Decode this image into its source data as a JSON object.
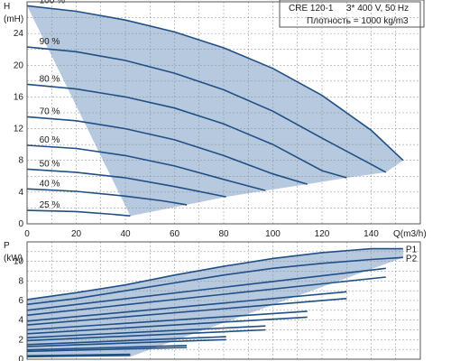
{
  "info": {
    "model": "CRE 120-1",
    "supply": "3* 400 V, 50 Hz",
    "density": "Плотность = 1000 kg/m3"
  },
  "colors": {
    "area_fill": "#b7c9de",
    "curve": "#1f4f86",
    "grid": "#8a8a8a"
  },
  "chart_data": [
    {
      "type": "line",
      "ylabel": "H",
      "yunit": "(mH)",
      "xlabel": "Q(m3/h)",
      "xlim": [
        0,
        160
      ],
      "ylim": [
        0,
        28
      ],
      "xticks": [
        0,
        20,
        40,
        60,
        80,
        100,
        120,
        140
      ],
      "yticks": [
        0,
        4,
        8,
        12,
        16,
        20,
        24
      ],
      "grid": true,
      "series": [
        {
          "name": "100 %",
          "x": [
            0,
            20,
            40,
            60,
            80,
            100,
            120,
            140,
            153
          ],
          "y": [
            27.5,
            26.8,
            25.7,
            24.2,
            22.2,
            19.6,
            16.2,
            11.8,
            8
          ]
        },
        {
          "name": "90 %",
          "x": [
            0,
            20,
            40,
            60,
            80,
            100,
            120,
            140,
            146
          ],
          "y": [
            22.3,
            21.7,
            20.6,
            19.0,
            16.9,
            14.2,
            10.8,
            7.5,
            6.5
          ]
        },
        {
          "name": "80 %",
          "x": [
            0,
            20,
            40,
            60,
            80,
            100,
            120,
            130
          ],
          "y": [
            17.6,
            17.0,
            16.0,
            14.6,
            12.6,
            10.0,
            6.7,
            5.8
          ]
        },
        {
          "name": "70 %",
          "x": [
            0,
            20,
            40,
            60,
            80,
            100,
            114
          ],
          "y": [
            13.5,
            13.0,
            12.0,
            10.6,
            8.6,
            6.3,
            5.0
          ]
        },
        {
          "name": "60 %",
          "x": [
            0,
            20,
            40,
            60,
            80,
            97
          ],
          "y": [
            9.9,
            9.5,
            8.6,
            7.3,
            5.6,
            4.2
          ]
        },
        {
          "name": "50 %",
          "x": [
            0,
            20,
            40,
            60,
            81
          ],
          "y": [
            6.9,
            6.5,
            5.8,
            4.7,
            3.4
          ]
        },
        {
          "name": "40 %",
          "x": [
            0,
            20,
            40,
            55,
            65
          ],
          "y": [
            4.4,
            4.1,
            3.5,
            2.9,
            2.4
          ]
        },
        {
          "name": "25 %",
          "x": [
            0,
            20,
            35,
            42
          ],
          "y": [
            1.7,
            1.55,
            1.2,
            1.0
          ]
        }
      ],
      "envelope": {
        "x": [
          0,
          20,
          40,
          60,
          80,
          100,
          120,
          140,
          153,
          146,
          130,
          114,
          97,
          81,
          65,
          42
        ],
        "y": [
          27.5,
          26.8,
          25.7,
          24.2,
          22.2,
          19.6,
          16.2,
          11.8,
          8,
          6.5,
          5.8,
          5.0,
          4.2,
          3.4,
          2.4,
          1.0
        ]
      }
    },
    {
      "type": "line",
      "ylabel": "P",
      "yunit": "(kW)",
      "xlim": [
        0,
        160
      ],
      "ylim": [
        0,
        12
      ],
      "yticks": [
        0,
        2,
        4,
        6,
        8,
        10
      ],
      "grid": true,
      "series": [
        {
          "name": "P1",
          "x": [
            0,
            20,
            40,
            60,
            80,
            100,
            120,
            140,
            153
          ],
          "y": [
            6.1,
            6.8,
            7.6,
            8.6,
            9.5,
            10.3,
            10.9,
            11.3,
            11.3
          ]
        },
        {
          "name": "P2",
          "x": [
            0,
            20,
            40,
            60,
            80,
            100,
            120,
            140,
            153
          ],
          "y": [
            5.6,
            6.2,
            7.0,
            7.8,
            8.6,
            9.3,
            9.8,
            10.2,
            10.4
          ]
        },
        {
          "name": "",
          "x": [
            0,
            146
          ],
          "y": [
            5.0,
            9.3
          ]
        },
        {
          "name": "",
          "x": [
            0,
            146
          ],
          "y": [
            4.5,
            8.4
          ]
        },
        {
          "name": "",
          "x": [
            0,
            130
          ],
          "y": [
            3.9,
            6.9
          ]
        },
        {
          "name": "",
          "x": [
            0,
            130
          ],
          "y": [
            3.5,
            6.2
          ]
        },
        {
          "name": "",
          "x": [
            0,
            114
          ],
          "y": [
            3.0,
            4.9
          ]
        },
        {
          "name": "",
          "x": [
            0,
            114
          ],
          "y": [
            2.6,
            4.3
          ]
        },
        {
          "name": "",
          "x": [
            0,
            97
          ],
          "y": [
            2.2,
            3.4
          ]
        },
        {
          "name": "",
          "x": [
            0,
            97
          ],
          "y": [
            1.9,
            3.0
          ]
        },
        {
          "name": "",
          "x": [
            0,
            81
          ],
          "y": [
            1.5,
            2.3
          ]
        },
        {
          "name": "",
          "x": [
            0,
            81
          ],
          "y": [
            1.3,
            2.0
          ]
        },
        {
          "name": "",
          "x": [
            0,
            65
          ],
          "y": [
            0.95,
            1.4
          ]
        },
        {
          "name": "",
          "x": [
            0,
            65
          ],
          "y": [
            0.8,
            1.2
          ]
        },
        {
          "name": "",
          "x": [
            0,
            42
          ],
          "y": [
            0.35,
            0.5
          ]
        },
        {
          "name": "",
          "x": [
            0,
            42
          ],
          "y": [
            0.25,
            0.4
          ]
        }
      ],
      "curve_labels": [
        "P1",
        "P2"
      ],
      "envelope": {
        "x": [
          0,
          20,
          40,
          60,
          80,
          100,
          120,
          140,
          153,
          153,
          42,
          0
        ],
        "y": [
          6.1,
          6.8,
          7.6,
          8.6,
          9.5,
          10.3,
          10.9,
          11.3,
          11.3,
          10.4,
          0.25,
          0.25
        ]
      }
    }
  ]
}
